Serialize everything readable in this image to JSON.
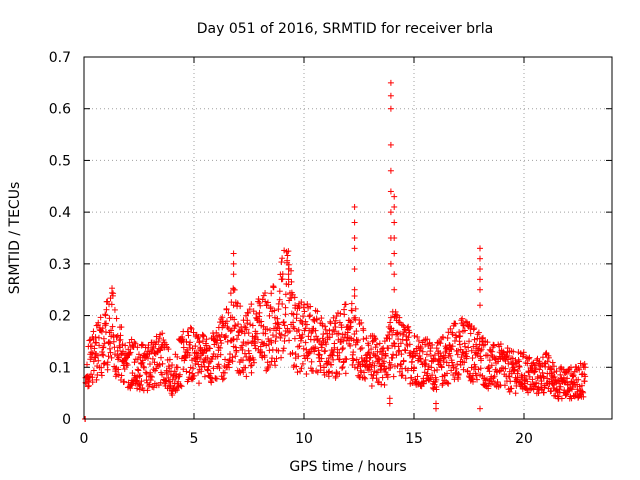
{
  "chart_data": {
    "type": "scatter",
    "title": "Day 051 of 2016, SRMTID for receiver brla",
    "xlabel": "GPS time / hours",
    "ylabel": "SRMTID / TECUs",
    "xlim": [
      0,
      24
    ],
    "ylim": [
      0,
      0.7
    ],
    "xticks": [
      "0",
      "5",
      "10",
      "15",
      "20"
    ],
    "yticks": [
      "0",
      "0.1",
      "0.2",
      "0.3",
      "0.4",
      "0.5",
      "0.6",
      "0.7"
    ],
    "grid": true,
    "marker": "+",
    "color": "#ff0000",
    "envelope": {
      "x": [
        0.0,
        0.3,
        0.6,
        1.0,
        1.2,
        1.5,
        2.0,
        2.5,
        3.0,
        3.5,
        4.0,
        4.5,
        5.0,
        5.5,
        6.0,
        6.5,
        6.8,
        7.2,
        7.8,
        8.3,
        8.8,
        9.2,
        9.6,
        10.0,
        10.5,
        11.0,
        11.5,
        12.0,
        12.3,
        12.7,
        13.2,
        13.6,
        14.0,
        14.5,
        15.0,
        15.5,
        16.0,
        16.5,
        17.0,
        17.5,
        18.0,
        18.5,
        19.0,
        19.5,
        20.0,
        20.5,
        21.0,
        21.5,
        22.0,
        22.4,
        22.8
      ],
      "y": [
        0.09,
        0.11,
        0.13,
        0.16,
        0.19,
        0.14,
        0.11,
        0.1,
        0.1,
        0.12,
        0.08,
        0.12,
        0.13,
        0.11,
        0.12,
        0.15,
        0.19,
        0.14,
        0.16,
        0.17,
        0.19,
        0.24,
        0.16,
        0.16,
        0.15,
        0.13,
        0.14,
        0.16,
        0.17,
        0.12,
        0.11,
        0.1,
        0.15,
        0.13,
        0.12,
        0.11,
        0.1,
        0.12,
        0.14,
        0.13,
        0.12,
        0.1,
        0.1,
        0.09,
        0.09,
        0.08,
        0.09,
        0.07,
        0.07,
        0.07,
        0.08
      ]
    },
    "spikes": [
      {
        "x": 6.8,
        "values": [
          0.22,
          0.25,
          0.28,
          0.3,
          0.32
        ]
      },
      {
        "x": 9.3,
        "values": [
          0.26,
          0.27,
          0.28,
          0.29
        ]
      },
      {
        "x": 12.3,
        "values": [
          0.25,
          0.29,
          0.33,
          0.35,
          0.38,
          0.41
        ]
      },
      {
        "x": 13.95,
        "values": [
          0.3,
          0.35,
          0.4,
          0.44,
          0.48,
          0.53,
          0.6,
          0.625,
          0.65
        ]
      },
      {
        "x": 14.1,
        "values": [
          0.25,
          0.28,
          0.32,
          0.35,
          0.38,
          0.41,
          0.43
        ]
      },
      {
        "x": 18.0,
        "values": [
          0.22,
          0.25,
          0.27,
          0.29,
          0.31,
          0.33
        ]
      },
      {
        "x": 0.05,
        "values": [
          0.0,
          0.0,
          0.0
        ]
      },
      {
        "x": 13.9,
        "values": [
          0.03,
          0.04
        ]
      },
      {
        "x": 16.0,
        "values": [
          0.02,
          0.03
        ]
      },
      {
        "x": 18.0,
        "values": [
          0.02
        ]
      }
    ]
  }
}
